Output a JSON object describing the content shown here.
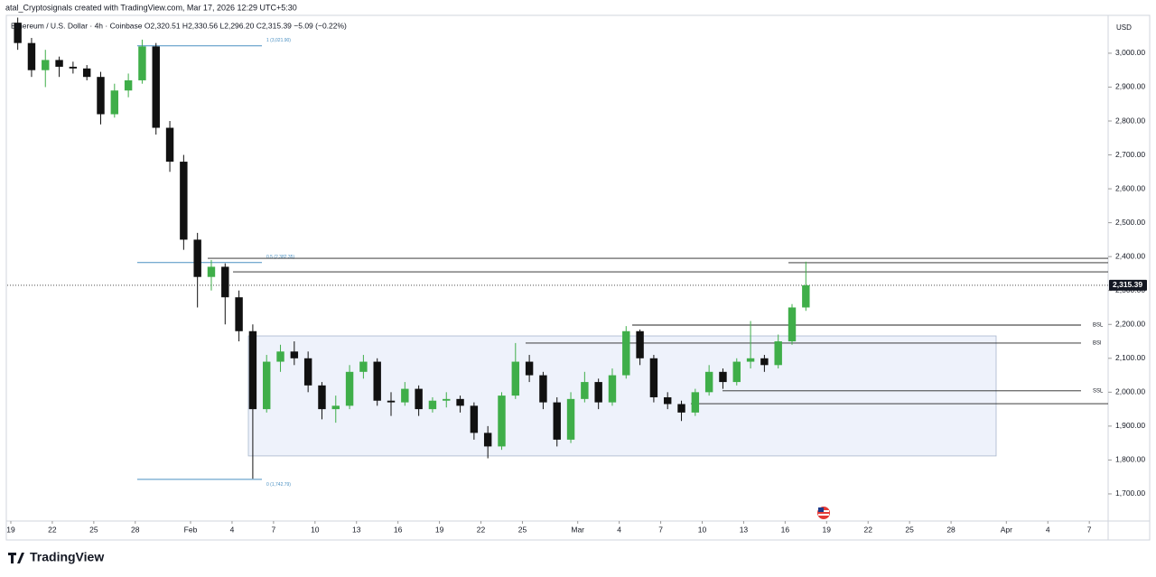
{
  "header": {
    "credit": "atal_Cryptosignals created with TradingView.com, Mar 17, 2026 12:29 UTC+5:30",
    "legend": "Ethereum / U.S. Dollar · 4h · Coinbase  O2,320.51  H2,330.56  L2,296.20  C2,315.39  −5.09 (−0.22%)",
    "currency": "USD"
  },
  "footer": {
    "brand": "TradingView"
  },
  "chart_data": {
    "type": "candlestick",
    "up_color": "#3fae49",
    "down_color": "#111111",
    "x": [
      0.5,
      1.5,
      2.5,
      3.5,
      4.5,
      5.5,
      6.5,
      7.5,
      8.5,
      9.5,
      10.5,
      11.5,
      12.5,
      13.5,
      14.5,
      15.5,
      16.5,
      17.5,
      18.5,
      19.5,
      20.5,
      21.5,
      22.5,
      23.5,
      24.5,
      25.5,
      26.5,
      27.5,
      28.5,
      29.5,
      30.5,
      31.5,
      32.5,
      33.5,
      34.5,
      35.5,
      36.5,
      37.5,
      38.5,
      39.5,
      40.5,
      41.5,
      42.5,
      43.5,
      44.5,
      45.5,
      46.5,
      47.5,
      48.5,
      49.5,
      50.5,
      51.5,
      52.5,
      53.5,
      54.5,
      55.5,
      56.5,
      57.5
    ],
    "open": [
      3090,
      3030,
      2950,
      2980,
      2960,
      2955,
      2930,
      2820,
      2890,
      2920,
      3020,
      2780,
      2680,
      2450,
      2340,
      2370,
      2280,
      2180,
      1950,
      2090,
      2120,
      2100,
      2020,
      1950,
      1960,
      2060,
      2090,
      1975,
      1970,
      2010,
      1950,
      1975,
      1980,
      1960,
      1880,
      1840,
      1990,
      2090,
      2050,
      1970,
      1860,
      1980,
      2030,
      1970,
      2050,
      2180,
      2100,
      1985,
      1965,
      1940,
      2000,
      2060,
      2030,
      2090,
      2100,
      2080,
      2150,
      2250
    ],
    "high": [
      3105,
      3045,
      3010,
      2990,
      2975,
      2965,
      2945,
      2910,
      2940,
      3040,
      3030,
      2800,
      2700,
      2470,
      2390,
      2380,
      2300,
      2200,
      2110,
      2140,
      2150,
      2120,
      2030,
      1990,
      2080,
      2110,
      2100,
      2000,
      2030,
      2020,
      1985,
      2000,
      1990,
      1970,
      1900,
      2000,
      2145,
      2110,
      2060,
      1985,
      2000,
      2060,
      2040,
      2070,
      2195,
      2185,
      2110,
      2000,
      1975,
      2010,
      2080,
      2070,
      2100,
      2210,
      2110,
      2170,
      2260,
      2385
    ],
    "low": [
      3010,
      2930,
      2900,
      2930,
      2940,
      2920,
      2790,
      2810,
      2870,
      2910,
      2760,
      2650,
      2420,
      2250,
      2300,
      2200,
      2150,
      1745,
      1940,
      2060,
      2080,
      2000,
      1920,
      1910,
      1950,
      2040,
      1960,
      1930,
      1960,
      1930,
      1940,
      1955,
      1940,
      1860,
      1805,
      1830,
      1980,
      2030,
      1950,
      1840,
      1850,
      1970,
      1950,
      1960,
      2040,
      2080,
      1970,
      1950,
      1915,
      1930,
      1990,
      2010,
      2020,
      2070,
      2060,
      2070,
      2140,
      2240
    ],
    "close": [
      3030,
      2950,
      2980,
      2960,
      2955,
      2930,
      2820,
      2890,
      2920,
      3020,
      2780,
      2680,
      2450,
      2340,
      2370,
      2280,
      2180,
      1950,
      2090,
      2120,
      2100,
      2020,
      1950,
      1960,
      2060,
      2090,
      1975,
      1970,
      2010,
      1950,
      1975,
      1980,
      1960,
      1880,
      1840,
      1990,
      2090,
      2050,
      1970,
      1860,
      1980,
      2030,
      1970,
      2050,
      2180,
      2100,
      1985,
      1965,
      1940,
      2000,
      2060,
      2030,
      2090,
      2100,
      2080,
      2150,
      2250,
      2315.39
    ],
    "xlim": [
      -0.26,
      79.36
    ],
    "xticks": [
      {
        "value": 0,
        "label": "19"
      },
      {
        "value": 3,
        "label": "22"
      },
      {
        "value": 6,
        "label": "25"
      },
      {
        "value": 9,
        "label": "28"
      },
      {
        "value": 13,
        "label": "Feb"
      },
      {
        "value": 16,
        "label": "4"
      },
      {
        "value": 19,
        "label": "7"
      },
      {
        "value": 22,
        "label": "10"
      },
      {
        "value": 25,
        "label": "13"
      },
      {
        "value": 28,
        "label": "16"
      },
      {
        "value": 31,
        "label": "19"
      },
      {
        "value": 34,
        "label": "22"
      },
      {
        "value": 37,
        "label": "25"
      },
      {
        "value": 41,
        "label": "Mar"
      },
      {
        "value": 44,
        "label": "4"
      },
      {
        "value": 47,
        "label": "7"
      },
      {
        "value": 50,
        "label": "10"
      },
      {
        "value": 53,
        "label": "13"
      },
      {
        "value": 56,
        "label": "16"
      },
      {
        "value": 59,
        "label": "19"
      },
      {
        "value": 62,
        "label": "22"
      },
      {
        "value": 65,
        "label": "25"
      },
      {
        "value": 68,
        "label": "28"
      },
      {
        "value": 72,
        "label": "Apr"
      },
      {
        "value": 75,
        "label": "4"
      },
      {
        "value": 78,
        "label": "7"
      }
    ],
    "ylim": [
      1620,
      3109
    ],
    "yticks": [
      {
        "value": 1700,
        "label": "1,700.00"
      },
      {
        "value": 1800,
        "label": "1,800.00"
      },
      {
        "value": 1900,
        "label": "1,900.00"
      },
      {
        "value": 2000,
        "label": "2,000.00"
      },
      {
        "value": 2100,
        "label": "2,100.00"
      },
      {
        "value": 2200,
        "label": "2,200.00"
      },
      {
        "value": 2300,
        "label": "2,300.00"
      },
      {
        "value": 2400,
        "label": "2,400.00"
      },
      {
        "value": 2500,
        "label": "2,500.00"
      },
      {
        "value": 2600,
        "label": "2,600.00"
      },
      {
        "value": 2700,
        "label": "2,700.00"
      },
      {
        "value": 2800,
        "label": "2,800.00"
      },
      {
        "value": 2900,
        "label": "2,900.00"
      },
      {
        "value": 3000,
        "label": "3,000.00"
      }
    ],
    "last_price": {
      "value": 2315.39,
      "label": "2,315.39"
    },
    "range_box": {
      "y0": 1812,
      "y1": 2166,
      "x0": 17.18,
      "x1": 71.26,
      "color": "#e8eef9"
    },
    "fib_levels": [
      {
        "y": 3021.9,
        "x0": 9.14,
        "x1": 18.16,
        "label": "1 (3,021.90)"
      },
      {
        "y": 2382.35,
        "x0": 9.14,
        "x1": 18.16,
        "label": "0.5 (2,382.35)"
      },
      {
        "y": 1742.79,
        "x0": 9.14,
        "x1": 18.16,
        "label": "0 (1,742.79)"
      }
    ],
    "fib_color": "#4a90c2",
    "lines": [
      {
        "y": 2395,
        "x0": 14.24,
        "x1": 79.36
      },
      {
        "y": 2382,
        "x0": 56.24,
        "x1": 79.36
      },
      {
        "y": 2355,
        "x0": 16.07,
        "x1": 79.36
      },
      {
        "y": 2198,
        "x0": 44.94,
        "x1": 77.4,
        "label": "BSL"
      },
      {
        "y": 2145,
        "x0": 37.23,
        "x1": 77.4,
        "label": "BSl"
      },
      {
        "y": 2004,
        "x0": 51.47,
        "x1": 77.4,
        "label": "SSL"
      },
      {
        "y": 1966,
        "x0": 49.18,
        "x1": 79.36
      }
    ]
  }
}
